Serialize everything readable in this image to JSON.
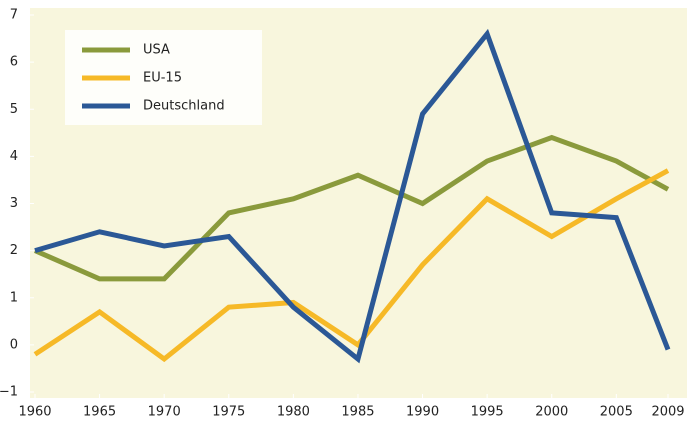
{
  "chart_data": {
    "type": "line",
    "x": [
      1960,
      1965,
      1970,
      1975,
      1980,
      1985,
      1990,
      1995,
      2000,
      2005,
      2009
    ],
    "series": [
      {
        "name": "USA",
        "color": "#8a9a3c",
        "values": [
          2.0,
          1.4,
          1.4,
          2.8,
          3.1,
          3.6,
          3.0,
          3.9,
          4.4,
          3.9,
          3.3
        ]
      },
      {
        "name": "EU-15",
        "color": "#f6b927",
        "values": [
          -0.2,
          0.7,
          -0.3,
          0.8,
          0.9,
          0.0,
          1.7,
          3.1,
          2.3,
          3.1,
          3.7
        ]
      },
      {
        "name": "Deutschland",
        "color": "#2b5896",
        "values": [
          2.0,
          2.4,
          2.1,
          2.3,
          0.8,
          -0.3,
          4.9,
          6.6,
          2.8,
          2.7,
          -0.1
        ]
      }
    ],
    "xlim": [
      1960,
      2009
    ],
    "xticks": [
      1960,
      1965,
      1970,
      1975,
      1980,
      1985,
      1990,
      1995,
      2000,
      2005,
      2009
    ],
    "ylim": [
      -1,
      7
    ],
    "yticks": [
      {
        "value": -1,
        "label": "−1"
      },
      0,
      1,
      2,
      3,
      4,
      5,
      6,
      7
    ],
    "legend": "upper left"
  }
}
